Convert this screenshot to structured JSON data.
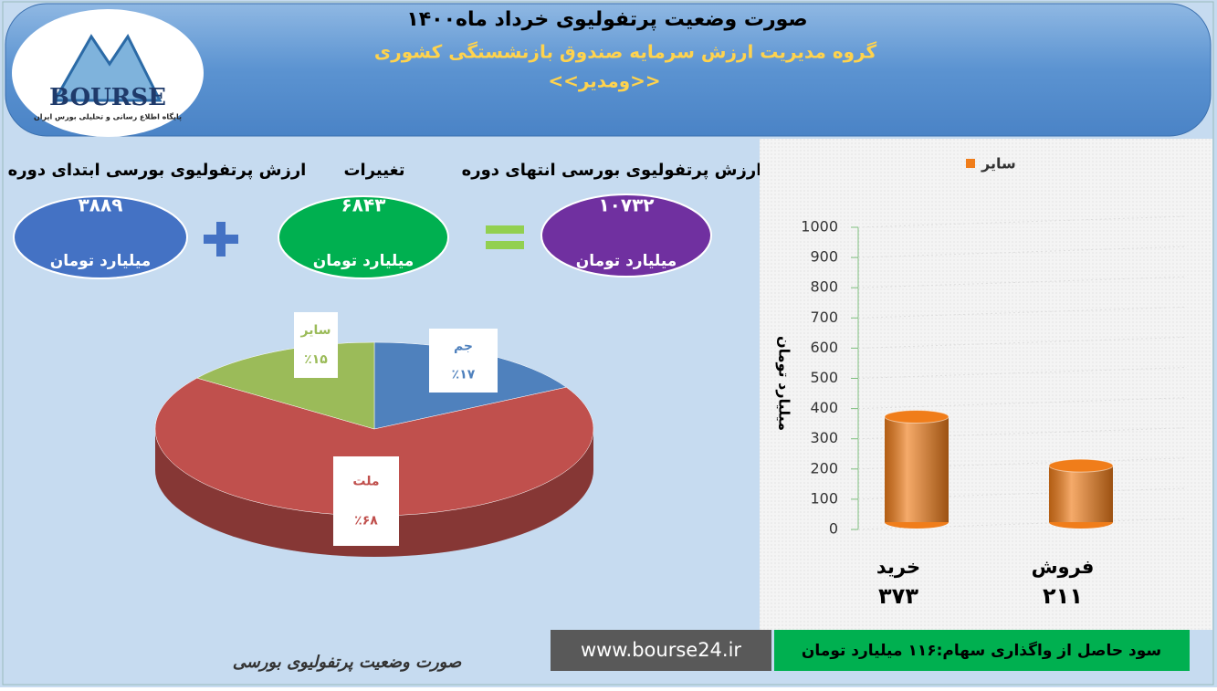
{
  "header": {
    "title": "صورت وضعیت پرتفولیوی خرداد ماه۱۴۰۰",
    "subtitle": "گروه مدیریت ارزش سرمایه صندوق بازنشستگی کشوری",
    "company": "<<ومدیر>>"
  },
  "logo": {
    "name": "BOURSE",
    "tagline": "پایگاه اطلاع رسانی و تحلیلی بورس ایران"
  },
  "stats": [
    {
      "label": "ارزش پرتفولیوی بورسی ابتدای دوره",
      "value": "۳۸۸۹",
      "unit": "میلیارد تومان"
    },
    {
      "label": "تغییرات",
      "value": "۶۸۴۳",
      "unit": "میلیارد تومان"
    },
    {
      "label": "ارزش پرتفولیوی بورسی انتهای دوره",
      "value": "۱۰۷۳۲",
      "unit": "میلیارد تومان"
    }
  ],
  "chart_data": [
    {
      "type": "pie",
      "categories": [
        "جم",
        "ملت",
        "سایر"
      ],
      "values": [
        17,
        68,
        15
      ],
      "value_labels": [
        "٪۱۷",
        "٪۶۸",
        "٪۱۵"
      ],
      "colors": [
        "#4f81bd",
        "#c0504d",
        "#9bbb59"
      ]
    },
    {
      "type": "bar",
      "categories": [
        "خرید",
        "فروش"
      ],
      "series": [
        {
          "name": "سایر",
          "color": "#f07d1a",
          "values": [
            373,
            211
          ],
          "value_labels": [
            "۳۷۳",
            "۲۱۱"
          ]
        }
      ],
      "y_label": "میلیارد تومان",
      "ylim": [
        0,
        1000
      ],
      "yticks": [
        0,
        100,
        200,
        300,
        400,
        500,
        600,
        700,
        800,
        900,
        1000
      ],
      "grid": true
    }
  ],
  "footer": {
    "caption": "صورت وضعیت پرتفولیوی بورسی",
    "url": "www.bourse24.ir",
    "note": "سود حاصل از واگذاری سهام:۱۱۶ میلیارد تومان"
  }
}
